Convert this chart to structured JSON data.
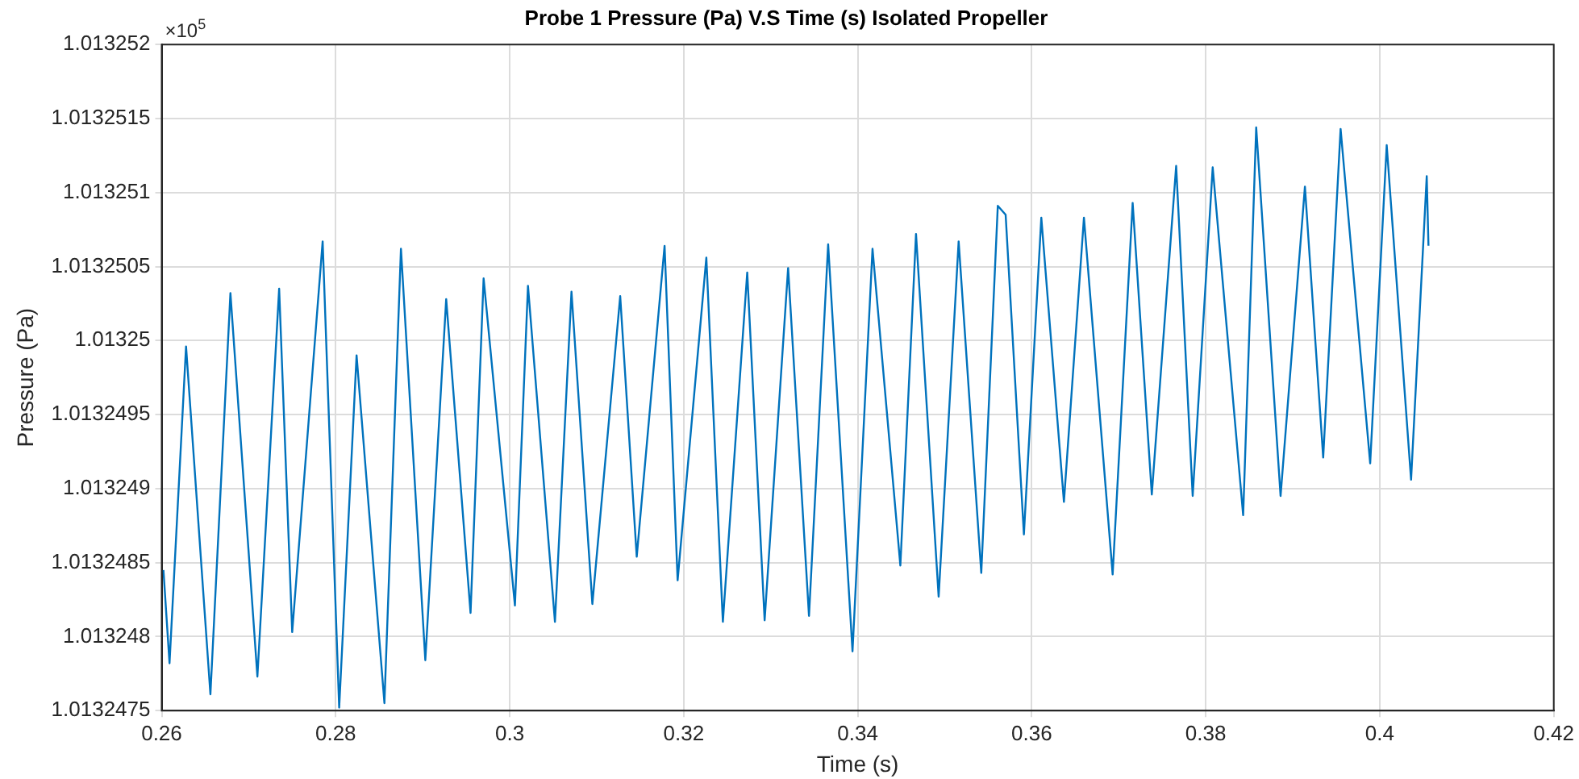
{
  "chart_data": {
    "type": "line",
    "title": "Probe 1 Pressure (Pa) V.S Time (s) Isolated Propeller",
    "xlabel": "Time (s)",
    "ylabel": "Pressure (Pa)",
    "annotations": [
      "×10$^{5}$"
    ],
    "xlim": [
      0.26,
      0.42
    ],
    "xticks": [
      0.26,
      0.28,
      0.3,
      0.32,
      0.34,
      0.36,
      0.38,
      0.4,
      0.42
    ],
    "ylim": [
      1.0132475,
      1.013252
    ],
    "yticks": [
      1.0132475,
      1.013248,
      1.0132485,
      1.013249,
      1.0132495,
      1.01325,
      1.0132505,
      1.013251,
      1.0132515,
      1.013252
    ],
    "grid": true,
    "legend": false,
    "marker": "none",
    "line_style": "solid",
    "series": [
      {
        "color": "#0072bd",
        "x": [
          0.2602,
          0.2609,
          0.2628,
          0.2656,
          0.2679,
          0.271,
          0.2735,
          0.275,
          0.2785,
          0.2804,
          0.2824,
          0.2856,
          0.2875,
          0.2903,
          0.2927,
          0.2955,
          0.297,
          0.3006,
          0.3021,
          0.3052,
          0.3071,
          0.3095,
          0.3127,
          0.3146,
          0.3178,
          0.3193,
          0.3226,
          0.3245,
          0.3273,
          0.3293,
          0.332,
          0.3344,
          0.3366,
          0.3394,
          0.3417,
          0.3449,
          0.3467,
          0.3493,
          0.3516,
          0.3542,
          0.3561,
          0.357,
          0.3591,
          0.3611,
          0.3637,
          0.366,
          0.3693,
          0.3716,
          0.3738,
          0.3766,
          0.3785,
          0.3808,
          0.3843,
          0.3858,
          0.3886,
          0.3914,
          0.3935,
          0.3955,
          0.3989,
          0.4008,
          0.4036,
          0.4054,
          0.4056
        ],
        "values": [
          1.01324845,
          1.01324782,
          1.01324996,
          1.01324761,
          1.01325032,
          1.01324773,
          1.01325035,
          1.01324803,
          1.01325067,
          1.01324752,
          1.0132499,
          1.01324755,
          1.01325062,
          1.01324784,
          1.01325028,
          1.01324816,
          1.01325042,
          1.01324821,
          1.01325037,
          1.0132481,
          1.01325033,
          1.01324822,
          1.0132503,
          1.01324854,
          1.01325064,
          1.01324838,
          1.01325056,
          1.0132481,
          1.01325046,
          1.01324811,
          1.01325049,
          1.01324814,
          1.01325065,
          1.0132479,
          1.01325062,
          1.01324848,
          1.01325072,
          1.01324827,
          1.01325067,
          1.01324843,
          1.01325091,
          1.01325085,
          1.01324869,
          1.01325083,
          1.01324891,
          1.01325083,
          1.01324842,
          1.01325093,
          1.01324896,
          1.01325118,
          1.01324895,
          1.01325117,
          1.01324882,
          1.01325144,
          1.01324895,
          1.01325104,
          1.01324921,
          1.01325143,
          1.01324917,
          1.01325132,
          1.01324906,
          1.01325111,
          1.01325064
        ]
      }
    ]
  }
}
